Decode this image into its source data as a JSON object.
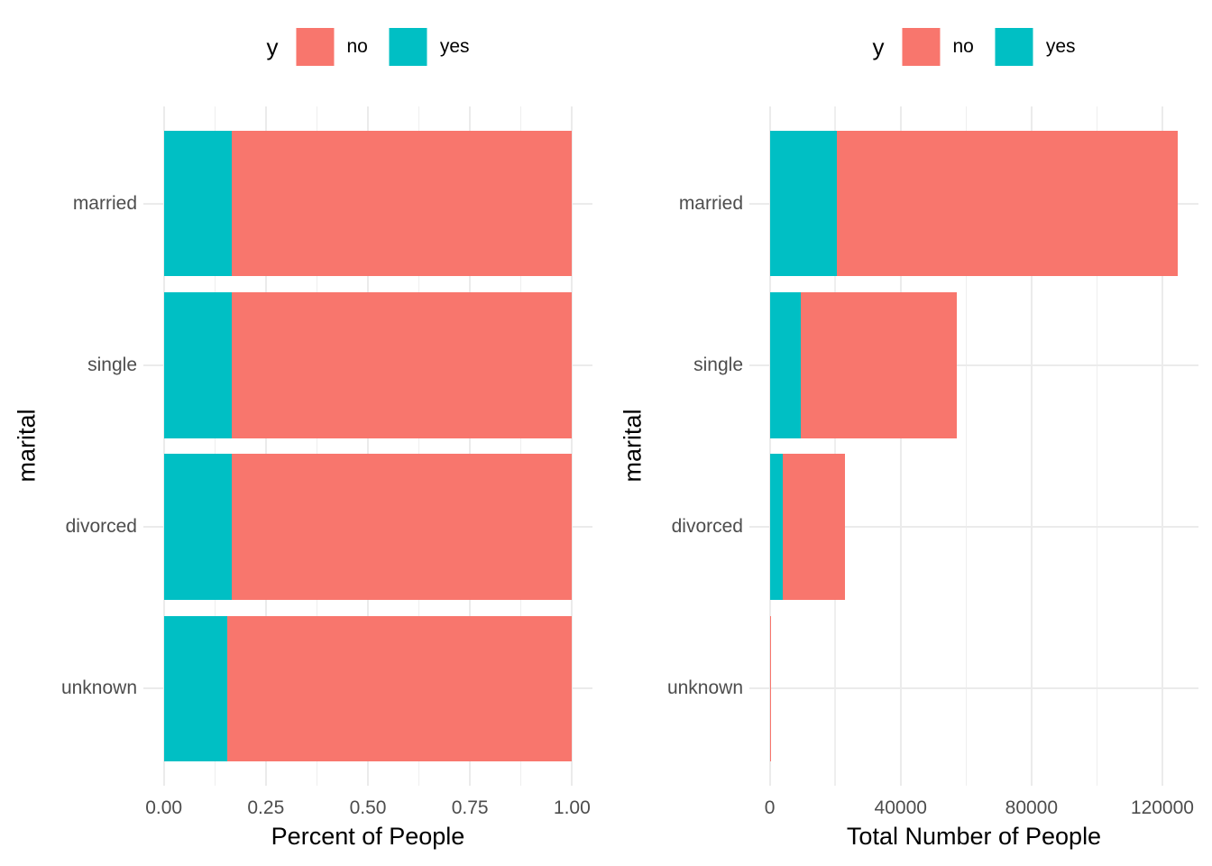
{
  "figure": {
    "background_color": "#FFFFFF",
    "grid_color": "#EBEBEB",
    "axis_text_color": "#4D4D4D",
    "axis_title_color": "#000000"
  },
  "legend": {
    "title": "y",
    "entries": [
      {
        "label": "no",
        "color": "#F8766D"
      },
      {
        "label": "yes",
        "color": "#00BFC4"
      }
    ],
    "position": "top"
  },
  "chart_data": [
    {
      "type": "bar",
      "orientation": "horizontal",
      "stacked": true,
      "title": "",
      "xlabel": "Percent of People",
      "ylabel": "marital",
      "categories": [
        "married",
        "single",
        "divorced",
        "unknown"
      ],
      "series": [
        {
          "name": "yes",
          "color": "#00BFC4",
          "values": [
            0.166,
            0.166,
            0.166,
            0.155
          ]
        },
        {
          "name": "no",
          "color": "#F8766D",
          "values": [
            0.834,
            0.834,
            0.834,
            0.845
          ]
        }
      ],
      "x_ticks": {
        "values": [
          0,
          0.25,
          0.5,
          0.75,
          1.0
        ],
        "labels": [
          "0.00",
          "0.25",
          "0.50",
          "0.75",
          "1.00"
        ]
      },
      "xlim": [
        0,
        1
      ],
      "grid": true,
      "legend_position": "top"
    },
    {
      "type": "bar",
      "orientation": "horizontal",
      "stacked": true,
      "title": "",
      "xlabel": "Total Number of People",
      "ylabel": "marital",
      "categories": [
        "married",
        "single",
        "divorced",
        "unknown"
      ],
      "series": [
        {
          "name": "yes",
          "color": "#00BFC4",
          "values": [
            20500,
            9600,
            3900,
            150
          ]
        },
        {
          "name": "no",
          "color": "#F8766D",
          "values": [
            104300,
            47700,
            19200,
            350
          ]
        }
      ],
      "x_ticks": {
        "values": [
          0,
          40000,
          80000,
          120000
        ],
        "labels": [
          "0",
          "40000",
          "80000",
          "120000"
        ]
      },
      "xlim": [
        0,
        124800
      ],
      "grid": true,
      "legend_position": "top"
    }
  ]
}
